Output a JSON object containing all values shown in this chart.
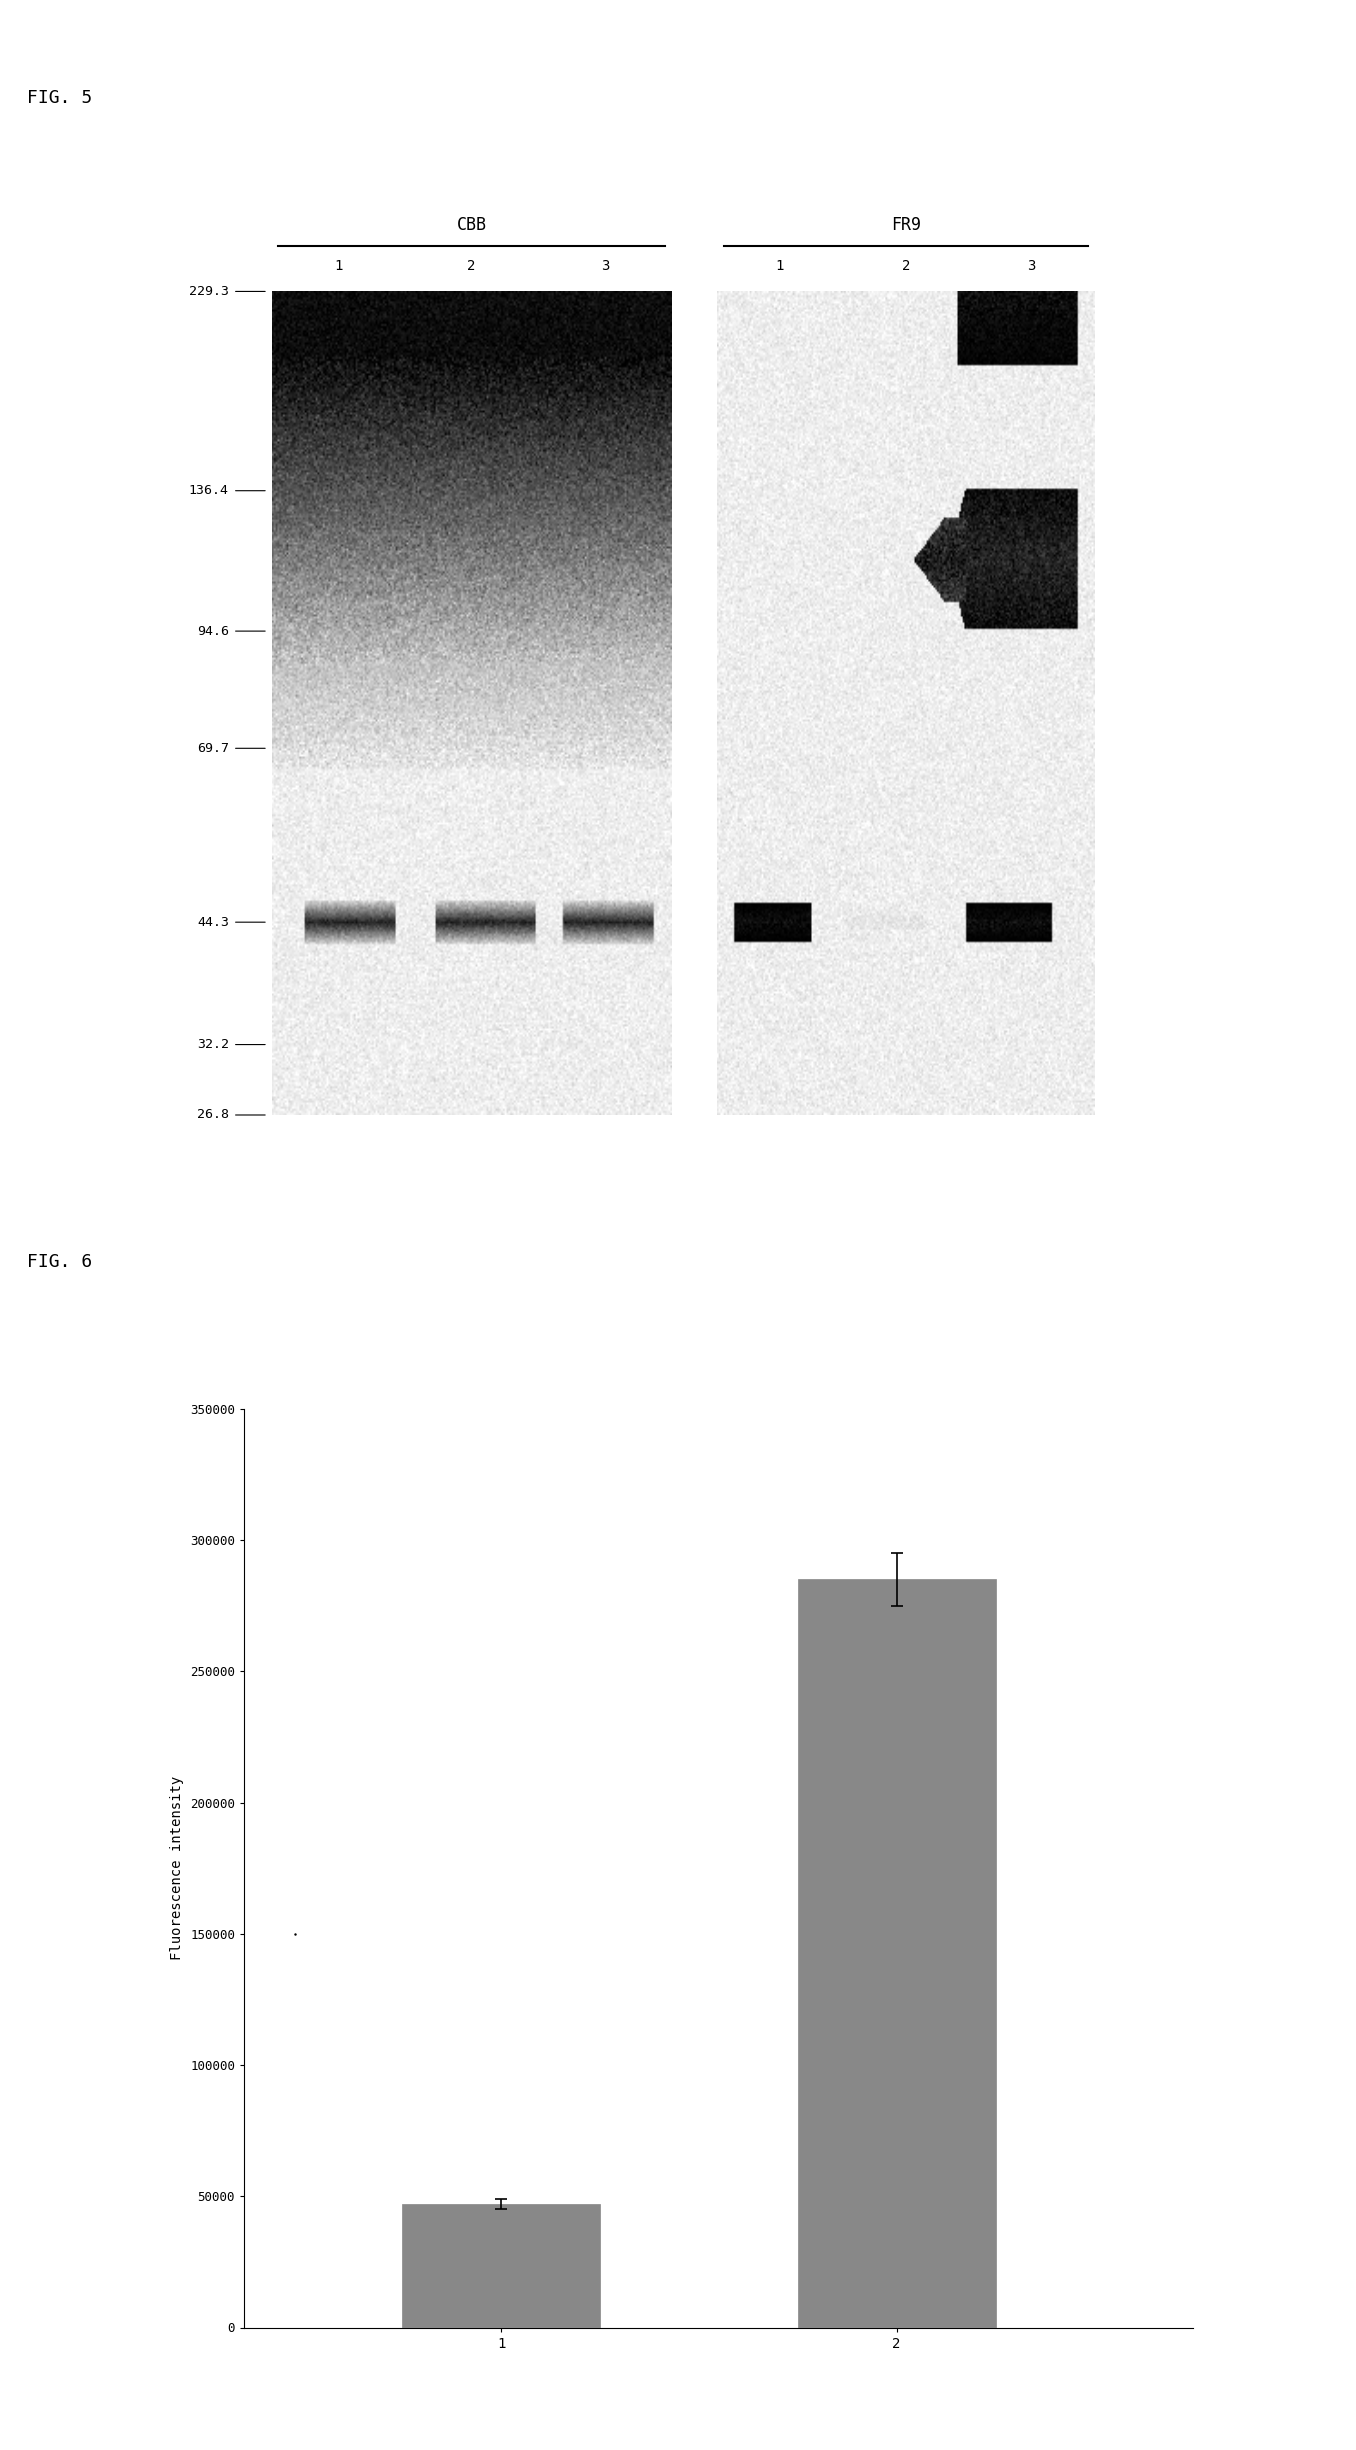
{
  "fig5_label": "FIG. 5",
  "fig6_label": "FIG. 6",
  "cbb_label": "CBB",
  "fr9_label": "FR9",
  "cbb_lanes": [
    "1",
    "2",
    "3"
  ],
  "fr9_lanes": [
    "1",
    "2",
    "3"
  ],
  "mw_markers": [
    229.3,
    136.4,
    94.6,
    69.7,
    44.3,
    32.2,
    26.8
  ],
  "bar_values": [
    47000,
    285000
  ],
  "bar_errors": [
    2000,
    10000
  ],
  "bar_categories": [
    "1",
    "2"
  ],
  "bar_color": "#888888",
  "ylabel": "Fluorescence intensity",
  "ylim": [
    0,
    350000
  ],
  "yticks": [
    0,
    50000,
    100000,
    150000,
    200000,
    250000,
    300000,
    350000
  ],
  "background_color": "#ffffff",
  "fig_label_fontsize": 13,
  "tick_fontsize": 9
}
